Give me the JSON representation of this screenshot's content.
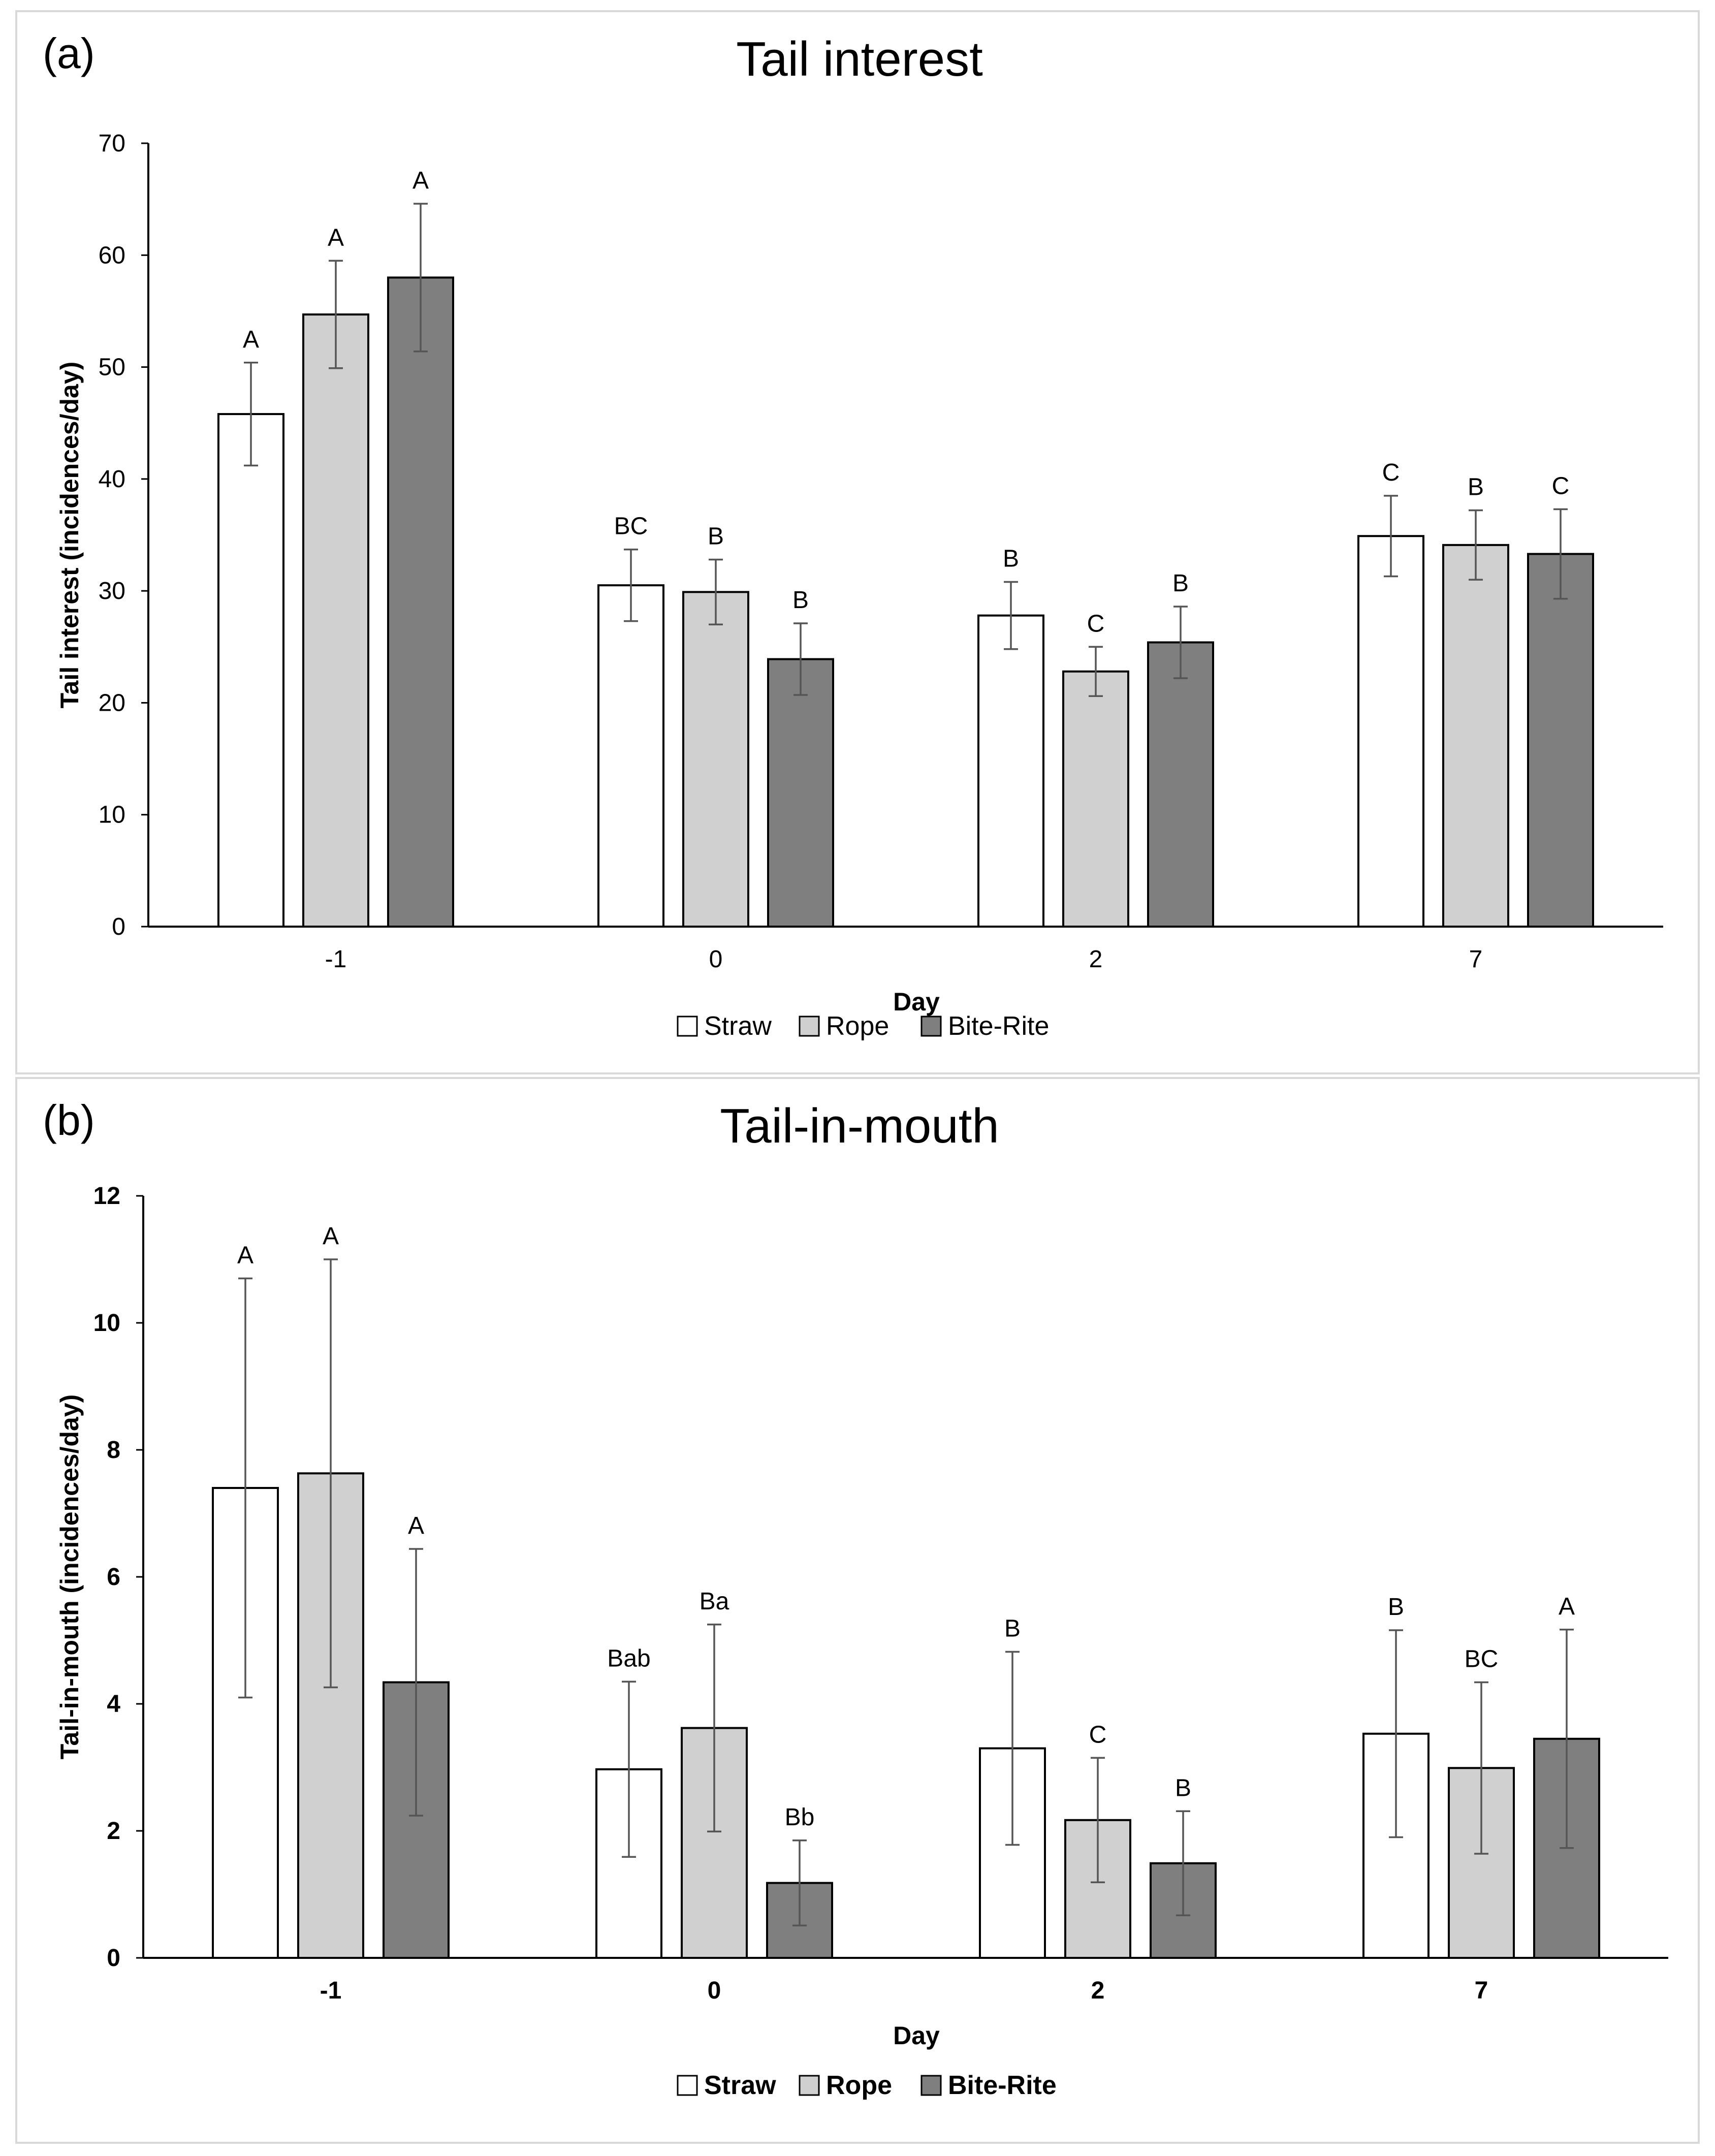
{
  "colors": {
    "Straw": "#ffffff",
    "Rope": "#d0d0d0",
    "Bite-Rite": "#7f7f7f",
    "outline": "#000000",
    "error": "#555555"
  },
  "chart_data": [
    {
      "type": "bar",
      "panel": "(a)",
      "title": "Tail interest",
      "xlabel": "Day",
      "ylabel": "Tail interest (incidences/day)",
      "categories": [
        "-1",
        "0",
        "2",
        "7"
      ],
      "ylim": [
        0,
        70
      ],
      "yticks": [
        0,
        10,
        20,
        30,
        40,
        50,
        60,
        70
      ],
      "bold_labels": false,
      "legend_position": "bottom-center",
      "series": [
        {
          "name": "Straw",
          "values": [
            45.8,
            30.5,
            27.8,
            34.9
          ],
          "errors": [
            4.6,
            3.2,
            3.0,
            3.6
          ],
          "letters": [
            "A",
            "BC",
            "B",
            "C"
          ]
        },
        {
          "name": "Rope",
          "values": [
            54.7,
            29.9,
            22.8,
            34.1
          ],
          "errors": [
            4.8,
            2.9,
            2.2,
            3.1
          ],
          "letters": [
            "A",
            "B",
            "C",
            "B"
          ]
        },
        {
          "name": "Bite-Rite",
          "values": [
            58.0,
            23.9,
            25.4,
            33.3
          ],
          "errors": [
            6.6,
            3.2,
            3.2,
            4.0
          ],
          "letters": [
            "A",
            "B",
            "B",
            "C"
          ]
        }
      ]
    },
    {
      "type": "bar",
      "panel": "(b)",
      "title": "Tail-in-mouth",
      "xlabel": "Day",
      "ylabel": "Tail-in-mouth (incidences/day)",
      "categories": [
        "-1",
        "0",
        "2",
        "7"
      ],
      "ylim": [
        0,
        12
      ],
      "yticks": [
        0,
        2,
        4,
        6,
        8,
        10,
        12
      ],
      "bold_labels": true,
      "legend_position": "bottom-center",
      "series": [
        {
          "name": "Straw",
          "values": [
            7.4,
            2.97,
            3.3,
            3.53
          ],
          "errors": [
            3.3,
            1.38,
            1.52,
            1.63
          ],
          "letters": [
            "A",
            "Bab",
            "B",
            "B"
          ]
        },
        {
          "name": "Rope",
          "values": [
            7.63,
            3.62,
            2.17,
            2.99
          ],
          "errors": [
            3.37,
            1.63,
            0.98,
            1.35
          ],
          "letters": [
            "A",
            "Ba",
            "C",
            "BC"
          ]
        },
        {
          "name": "Bite-Rite",
          "values": [
            4.34,
            1.18,
            1.49,
            3.45
          ],
          "errors": [
            2.1,
            0.67,
            0.82,
            1.72
          ],
          "letters": [
            "A",
            "Bb",
            "B",
            "A"
          ]
        }
      ]
    }
  ]
}
